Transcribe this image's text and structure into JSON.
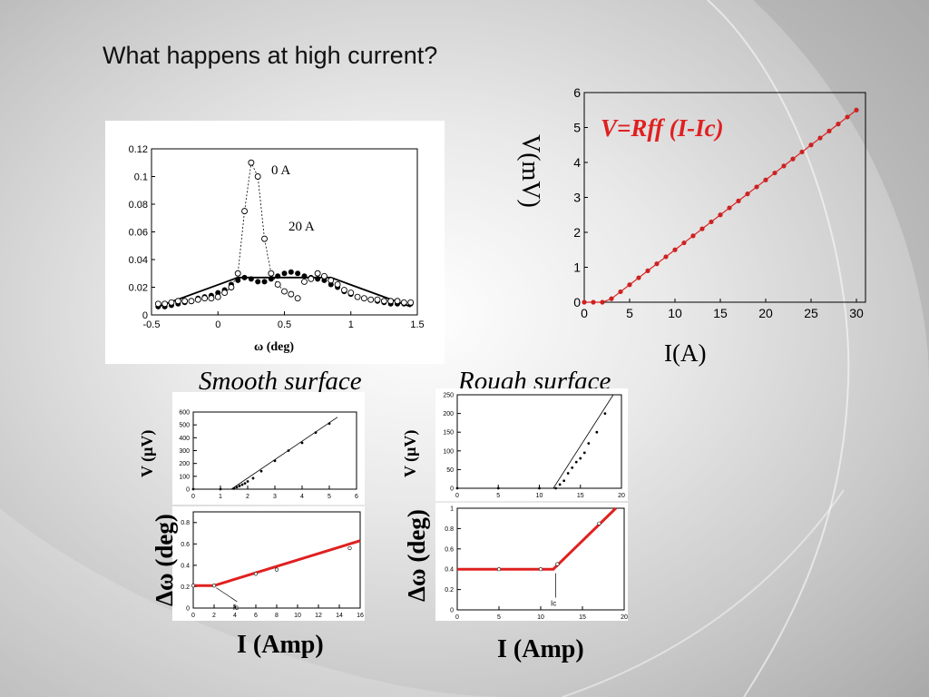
{
  "slide": {
    "title": "What happens at high current?",
    "smooth_label": "Smooth surface",
    "rough_label": "Rough surface"
  },
  "colors": {
    "fit_red": "#e02020",
    "marker_red": "#cc2222"
  },
  "chart_data": [
    {
      "id": "omega",
      "type": "scatter",
      "xlabel": "ω (deg)",
      "xlim": [
        -0.5,
        1.5
      ],
      "ylim": [
        0,
        0.12
      ],
      "xticks": [
        "-0.5",
        "0",
        "0.5",
        "1",
        "1.5"
      ],
      "yticks": [
        "0",
        "0.02",
        "0.04",
        "0.06",
        "0.08",
        "0.1",
        "0.12"
      ],
      "series": [
        {
          "name": "0 A",
          "marker": "open-circle",
          "x": [
            -0.45,
            -0.4,
            -0.35,
            -0.3,
            -0.25,
            -0.2,
            -0.15,
            -0.1,
            -0.05,
            0.0,
            0.05,
            0.1,
            0.15,
            0.2,
            0.25,
            0.3,
            0.35,
            0.4,
            0.45,
            0.5,
            0.55,
            0.6,
            0.65,
            0.7,
            0.75,
            0.8,
            0.85,
            0.9,
            0.95,
            1.0,
            1.05,
            1.1,
            1.15,
            1.2,
            1.25,
            1.3,
            1.35,
            1.4,
            1.45
          ],
          "y": [
            0.008,
            0.008,
            0.009,
            0.01,
            0.01,
            0.01,
            0.011,
            0.012,
            0.012,
            0.013,
            0.016,
            0.02,
            0.03,
            0.075,
            0.11,
            0.1,
            0.055,
            0.03,
            0.022,
            0.017,
            0.015,
            0.012,
            0.024,
            0.026,
            0.03,
            0.028,
            0.025,
            0.022,
            0.018,
            0.016,
            0.013,
            0.012,
            0.011,
            0.011,
            0.01,
            0.01,
            0.01,
            0.009,
            0.009
          ]
        },
        {
          "name": "20 A",
          "marker": "filled-circle",
          "x": [
            -0.45,
            -0.4,
            -0.35,
            -0.3,
            -0.25,
            -0.2,
            -0.15,
            -0.1,
            -0.05,
            0.0,
            0.05,
            0.1,
            0.15,
            0.2,
            0.25,
            0.3,
            0.35,
            0.4,
            0.45,
            0.5,
            0.55,
            0.6,
            0.65,
            0.7,
            0.75,
            0.8,
            0.85,
            0.9,
            0.95,
            1.0,
            1.05,
            1.1,
            1.15,
            1.2,
            1.25,
            1.3,
            1.35,
            1.4,
            1.45
          ],
          "y": [
            0.006,
            0.006,
            0.007,
            0.008,
            0.009,
            0.01,
            0.012,
            0.013,
            0.014,
            0.016,
            0.018,
            0.022,
            0.025,
            0.027,
            0.026,
            0.024,
            0.024,
            0.026,
            0.028,
            0.03,
            0.031,
            0.03,
            0.028,
            0.027,
            0.026,
            0.025,
            0.022,
            0.02,
            0.017,
            0.015,
            0.013,
            0.012,
            0.011,
            0.01,
            0.009,
            0.008,
            0.008,
            0.008,
            0.008
          ]
        }
      ],
      "fit_20A": {
        "x": [
          -0.45,
          0.15,
          0.85,
          1.45
        ],
        "y": [
          0.006,
          0.027,
          0.027,
          0.006
        ]
      }
    },
    {
      "id": "vi",
      "type": "line",
      "xlabel": "I(A)",
      "ylabel": "V(mV)",
      "annotation": "V=Rff (I-Ic)",
      "xlim": [
        0,
        31
      ],
      "ylim": [
        0,
        6
      ],
      "xticks": [
        "0",
        "5",
        "10",
        "15",
        "20",
        "25",
        "30"
      ],
      "yticks": [
        "0",
        "1",
        "2",
        "3",
        "4",
        "5",
        "6"
      ],
      "x": [
        0,
        1,
        2,
        3,
        4,
        5,
        6,
        7,
        8,
        9,
        10,
        11,
        12,
        13,
        14,
        15,
        16,
        17,
        18,
        19,
        20,
        21,
        22,
        23,
        24,
        25,
        26,
        27,
        28,
        29,
        30
      ],
      "y": [
        0,
        0,
        0,
        0.1,
        0.3,
        0.5,
        0.7,
        0.9,
        1.1,
        1.3,
        1.5,
        1.7,
        1.9,
        2.1,
        2.3,
        2.5,
        2.7,
        2.9,
        3.1,
        3.3,
        3.5,
        3.7,
        3.9,
        4.1,
        4.3,
        4.5,
        4.7,
        4.9,
        5.1,
        5.3,
        5.5
      ]
    },
    {
      "id": "smooth_v",
      "type": "scatter",
      "ylabel": "V (μV)",
      "xlim": [
        0,
        6
      ],
      "ylim": [
        0,
        600
      ],
      "xticks": [
        "0",
        "1",
        "2",
        "3",
        "4",
        "5",
        "6"
      ],
      "yticks": [
        "0",
        "100",
        "200",
        "300",
        "400",
        "500",
        "600"
      ],
      "x": [
        0,
        1,
        1.5,
        1.6,
        1.7,
        1.8,
        1.9,
        2.0,
        2.2,
        2.5,
        3.0,
        3.5,
        4.0,
        4.5,
        5.0
      ],
      "y": [
        0,
        0,
        5,
        15,
        25,
        35,
        45,
        60,
        85,
        140,
        220,
        300,
        360,
        440,
        510
      ],
      "fit": {
        "x": [
          1.4,
          5.3
        ],
        "y": [
          0,
          560
        ]
      }
    },
    {
      "id": "smooth_w",
      "type": "line",
      "ylabel": "Δω (deg)",
      "xlabel": "I (Amp)",
      "annotation": "Ic",
      "xlim": [
        0,
        16
      ],
      "ylim": [
        0,
        0.9
      ],
      "xticks": [
        "0",
        "2",
        "4",
        "6",
        "8",
        "10",
        "12",
        "14",
        "16"
      ],
      "yticks": [
        "0",
        "0.2",
        "0.4",
        "0.6",
        "0.8"
      ],
      "x": [
        0,
        2,
        6,
        8,
        15
      ],
      "y": [
        0.21,
        0.21,
        0.32,
        0.36,
        0.56
      ],
      "fit": {
        "x": [
          0,
          2,
          16
        ],
        "y": [
          0.21,
          0.21,
          0.63
        ]
      }
    },
    {
      "id": "rough_v",
      "type": "scatter",
      "ylabel": "V (μV)",
      "xlim": [
        0,
        20
      ],
      "ylim": [
        0,
        250
      ],
      "xticks": [
        "0",
        "5",
        "10",
        "15",
        "20"
      ],
      "yticks": [
        "0",
        "50",
        "100",
        "150",
        "200",
        "250"
      ],
      "x": [
        0,
        5,
        10,
        12,
        12.5,
        13,
        13.5,
        14,
        14.5,
        15,
        15.5,
        16,
        17,
        18
      ],
      "y": [
        0,
        0,
        0,
        0,
        10,
        20,
        40,
        55,
        70,
        80,
        95,
        120,
        150,
        200
      ],
      "fit": {
        "x": [
          11.7,
          19
        ],
        "y": [
          0,
          250
        ]
      }
    },
    {
      "id": "rough_w",
      "type": "line",
      "ylabel": "Δω (deg)",
      "xlabel": "I (Amp)",
      "annotation": "Ic",
      "xlim": [
        0,
        20
      ],
      "ylim": [
        0,
        1
      ],
      "xticks": [
        "0",
        "5",
        "10",
        "15",
        "20"
      ],
      "yticks": [
        "0",
        "0.2",
        "0.4",
        "0.6",
        "0.8",
        "1"
      ],
      "x": [
        5,
        10,
        12,
        17
      ],
      "y": [
        0.4,
        0.4,
        0.45,
        0.85
      ],
      "fit": {
        "x": [
          0,
          11.5,
          19
        ],
        "y": [
          0.4,
          0.4,
          1.0
        ]
      }
    }
  ]
}
